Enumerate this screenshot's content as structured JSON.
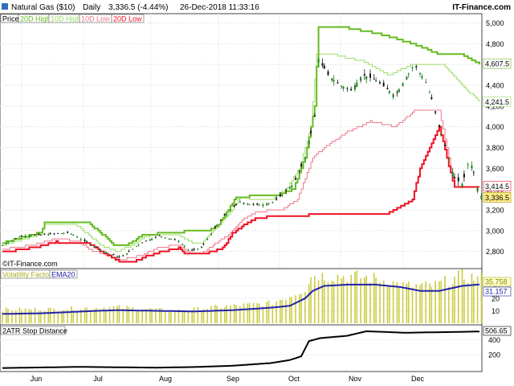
{
  "header": {
    "instrument": "Natural Gas ($10)",
    "period": "Daily",
    "quote": "3,336.5 (-4.44%)",
    "datetime": "26-Dec-2018 11:33:16",
    "site": "IT-Finance.com"
  },
  "watermark": "©IT-Finance.com",
  "colors": {
    "high20": "#66bb22",
    "high10": "#99dd66",
    "low10": "#ee7788",
    "low20": "#ee1122",
    "candle_up": "#1a7a1a",
    "candle_down": "#111111",
    "volatility_bar": "#cccc44",
    "ema": "#2222aa",
    "stop": "#000000"
  },
  "chart_data": [
    {
      "type": "candlestick",
      "panel": "price",
      "legend": [
        "Price",
        "20D High",
        "10D High",
        "10D Low",
        "20D Low"
      ],
      "x_ticks": [
        "Jun",
        "Jul",
        "Aug",
        "Sep",
        "Oct",
        "Nov",
        "Dec"
      ],
      "y_ticks": [
        "2,800",
        "3,000",
        "3,200",
        "3,400",
        "3,600",
        "3,800",
        "4,000",
        "4,200",
        "4,400",
        "4,600",
        "4,800",
        "5,000"
      ],
      "ylim": [
        2650,
        5050
      ],
      "end_labels": {
        "high20": "4,607.5",
        "high10": "4,241.5",
        "low10": "3,414.5",
        "low20": "3,414.5",
        "last": "3,336.5"
      },
      "n_bars": 146,
      "close_keypoints": [
        [
          0,
          2860
        ],
        [
          10,
          2950
        ],
        [
          20,
          2960
        ],
        [
          35,
          2980
        ],
        [
          45,
          2880
        ],
        [
          55,
          2780
        ],
        [
          62,
          2740
        ],
        [
          72,
          2880
        ],
        [
          82,
          2950
        ],
        [
          92,
          2900
        ],
        [
          98,
          2800
        ],
        [
          104,
          2840
        ],
        [
          115,
          3130
        ],
        [
          124,
          3280
        ],
        [
          130,
          3250
        ],
        [
          136,
          3250
        ],
        [
          142,
          3280
        ],
        [
          152,
          3450
        ],
        [
          158,
          3700
        ],
        [
          163,
          4100
        ],
        [
          165,
          4650
        ],
        [
          170,
          4500
        ],
        [
          176,
          4400
        ],
        [
          182,
          4350
        ],
        [
          188,
          4500
        ],
        [
          195,
          4450
        ],
        [
          205,
          4300
        ],
        [
          215,
          4600
        ],
        [
          222,
          4400
        ],
        [
          228,
          4000
        ],
        [
          236,
          3500
        ],
        [
          240,
          3450
        ],
        [
          244,
          3700
        ],
        [
          249,
          3336.5
        ]
      ],
      "high20_keypoints": [
        [
          0,
          2880
        ],
        [
          20,
          2980
        ],
        [
          22,
          3070
        ],
        [
          45,
          3070
        ],
        [
          55,
          2920
        ],
        [
          58,
          2860
        ],
        [
          65,
          2860
        ],
        [
          70,
          2920
        ],
        [
          74,
          2960
        ],
        [
          95,
          2990
        ],
        [
          106,
          2990
        ],
        [
          112,
          3040
        ],
        [
          118,
          3200
        ],
        [
          122,
          3320
        ],
        [
          129,
          3330
        ],
        [
          142,
          3330
        ],
        [
          152,
          3400
        ],
        [
          158,
          3700
        ],
        [
          163,
          4200
        ],
        [
          165,
          4950
        ],
        [
          180,
          4950
        ],
        [
          196,
          4900
        ],
        [
          214,
          4800
        ],
        [
          228,
          4700
        ],
        [
          240,
          4700
        ],
        [
          249,
          4607.5
        ]
      ],
      "high10_keypoints": [
        [
          0,
          2860
        ],
        [
          20,
          2960
        ],
        [
          22,
          3060
        ],
        [
          38,
          3060
        ],
        [
          45,
          2960
        ],
        [
          52,
          2850
        ],
        [
          60,
          2800
        ],
        [
          68,
          2860
        ],
        [
          74,
          2940
        ],
        [
          80,
          2960
        ],
        [
          92,
          2950
        ],
        [
          98,
          2890
        ],
        [
          104,
          2880
        ],
        [
          112,
          3040
        ],
        [
          118,
          3150
        ],
        [
          124,
          3320
        ],
        [
          132,
          3300
        ],
        [
          140,
          3290
        ],
        [
          148,
          3400
        ],
        [
          155,
          3600
        ],
        [
          161,
          4000
        ],
        [
          164,
          4700
        ],
        [
          172,
          4700
        ],
        [
          188,
          4630
        ],
        [
          202,
          4500
        ],
        [
          214,
          4600
        ],
        [
          230,
          4600
        ],
        [
          240,
          4400
        ],
        [
          249,
          4241.5
        ]
      ],
      "low10_keypoints": [
        [
          0,
          2820
        ],
        [
          15,
          2860
        ],
        [
          28,
          2920
        ],
        [
          40,
          2900
        ],
        [
          45,
          2820
        ],
        [
          55,
          2760
        ],
        [
          62,
          2720
        ],
        [
          72,
          2760
        ],
        [
          82,
          2840
        ],
        [
          92,
          2860
        ],
        [
          98,
          2780
        ],
        [
          104,
          2780
        ],
        [
          110,
          2860
        ],
        [
          118,
          2960
        ],
        [
          126,
          3110
        ],
        [
          132,
          3180
        ],
        [
          138,
          3190
        ],
        [
          146,
          3200
        ],
        [
          154,
          3300
        ],
        [
          162,
          3700
        ],
        [
          168,
          3800
        ],
        [
          180,
          3950
        ],
        [
          192,
          4050
        ],
        [
          205,
          4000
        ],
        [
          215,
          4150
        ],
        [
          228,
          4150
        ],
        [
          232,
          3800
        ],
        [
          236,
          3414.5
        ],
        [
          249,
          3414.5
        ]
      ],
      "low20_keypoints": [
        [
          0,
          2790
        ],
        [
          20,
          2850
        ],
        [
          28,
          2890
        ],
        [
          45,
          2880
        ],
        [
          55,
          2760
        ],
        [
          62,
          2700
        ],
        [
          68,
          2700
        ],
        [
          75,
          2750
        ],
        [
          82,
          2790
        ],
        [
          92,
          2830
        ],
        [
          96,
          2770
        ],
        [
          104,
          2770
        ],
        [
          115,
          2830
        ],
        [
          120,
          2970
        ],
        [
          126,
          3050
        ],
        [
          132,
          3110
        ],
        [
          140,
          3140
        ],
        [
          148,
          3140
        ],
        [
          160,
          3150
        ],
        [
          170,
          3150
        ],
        [
          200,
          3150
        ],
        [
          214,
          3300
        ],
        [
          218,
          3600
        ],
        [
          228,
          4000
        ],
        [
          232,
          3700
        ],
        [
          236,
          3414.5
        ],
        [
          249,
          3414.5
        ]
      ]
    },
    {
      "type": "bar",
      "panel": "volatility",
      "legend": [
        "Volatility Factor",
        "EMA20"
      ],
      "y_ticks": [
        "10",
        "20",
        "30"
      ],
      "ylim": [
        0,
        40
      ],
      "end_labels": {
        "volatility": "35.758",
        "ema": "31.157"
      },
      "bar_keypoints": [
        [
          0,
          11
        ],
        [
          30,
          11.5
        ],
        [
          60,
          13
        ],
        [
          90,
          10
        ],
        [
          120,
          14
        ],
        [
          140,
          16
        ],
        [
          150,
          22
        ],
        [
          158,
          28
        ],
        [
          162,
          40
        ],
        [
          168,
          38
        ],
        [
          180,
          38
        ],
        [
          195,
          36
        ],
        [
          210,
          30
        ],
        [
          225,
          30
        ],
        [
          240,
          38
        ],
        [
          249,
          35.758
        ]
      ],
      "ema_keypoints": [
        [
          0,
          7.5
        ],
        [
          20,
          8
        ],
        [
          50,
          10
        ],
        [
          60,
          10.5
        ],
        [
          80,
          10
        ],
        [
          100,
          9.5
        ],
        [
          120,
          10.5
        ],
        [
          140,
          12.5
        ],
        [
          150,
          14
        ],
        [
          158,
          20
        ],
        [
          162,
          26
        ],
        [
          168,
          30
        ],
        [
          180,
          31
        ],
        [
          195,
          31
        ],
        [
          208,
          29
        ],
        [
          218,
          26
        ],
        [
          228,
          26
        ],
        [
          240,
          30
        ],
        [
          249,
          31.157
        ]
      ]
    },
    {
      "type": "line",
      "panel": "stop",
      "legend": [
        "2ATR Stop Distance"
      ],
      "y_ticks": [
        "200",
        "400"
      ],
      "ylim": [
        0,
        530
      ],
      "end_labels": {
        "stop": "506.65"
      },
      "keypoints": [
        [
          0,
          25
        ],
        [
          40,
          40
        ],
        [
          60,
          35
        ],
        [
          80,
          30
        ],
        [
          100,
          38
        ],
        [
          120,
          55
        ],
        [
          140,
          90
        ],
        [
          150,
          130
        ],
        [
          156,
          180
        ],
        [
          160,
          380
        ],
        [
          166,
          420
        ],
        [
          180,
          450
        ],
        [
          190,
          510
        ],
        [
          200,
          500
        ],
        [
          210,
          490
        ],
        [
          222,
          495
        ],
        [
          236,
          500
        ],
        [
          249,
          506.65
        ]
      ]
    }
  ]
}
